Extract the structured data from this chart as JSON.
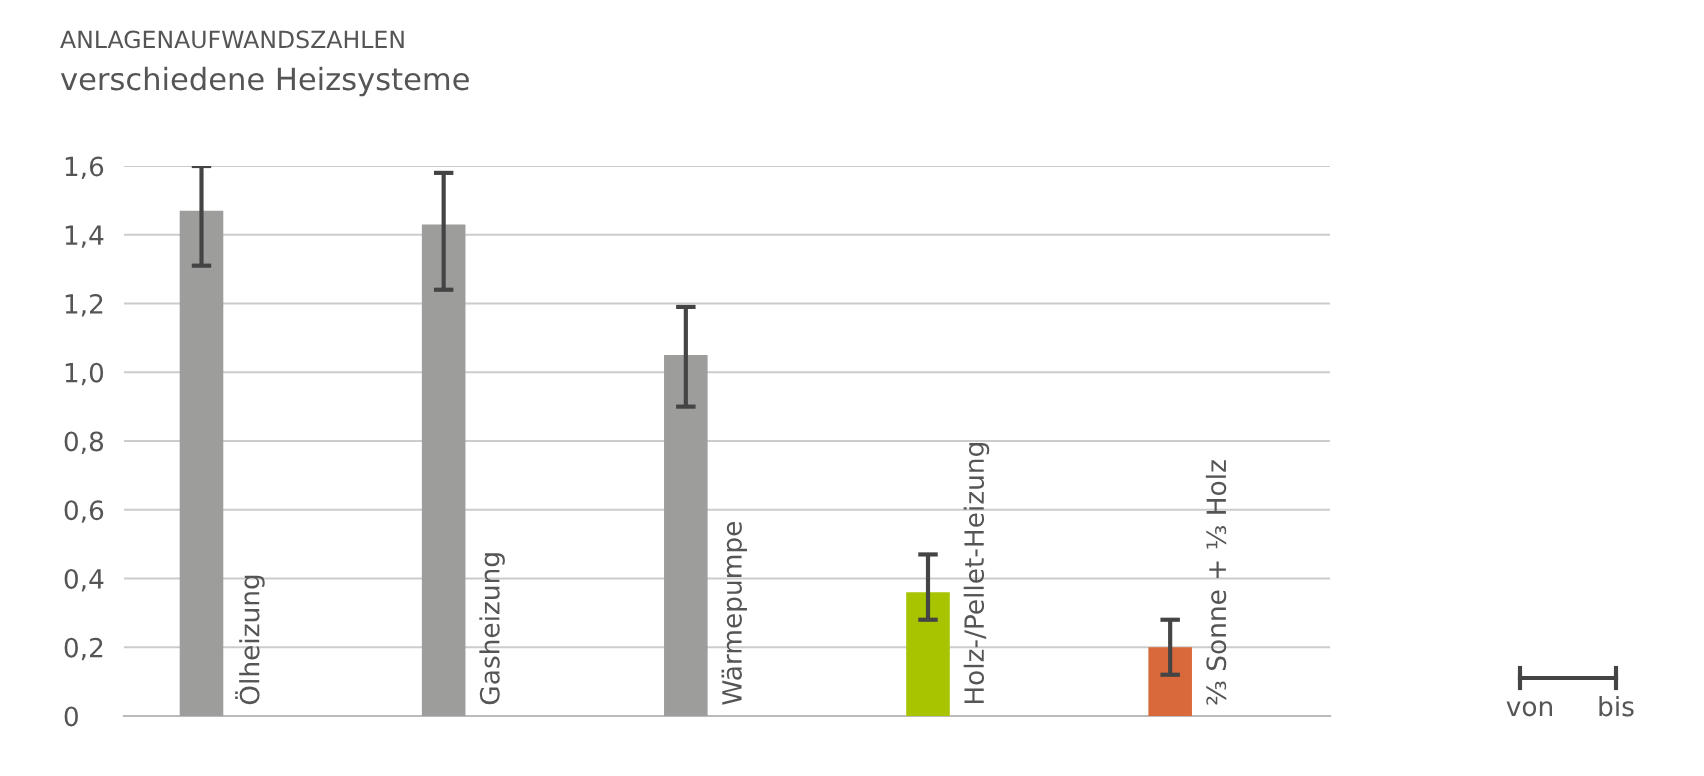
{
  "chart_data": {
    "type": "bar",
    "title": "ANLAGENAUFWANDSZAHLEN",
    "subtitle": "verschiedene Heizsysteme",
    "categories": [
      "Ölheizung",
      "Gasheizung",
      "Wärmepumpe",
      "Holz-/Pellet-Heizung",
      "⅔ Sonne + ⅓ Holz"
    ],
    "values": [
      1.47,
      1.43,
      1.05,
      0.36,
      0.2
    ],
    "colors": [
      "#9d9d9c",
      "#9d9d9c",
      "#9d9d9c",
      "#a8c300",
      "#d9693a"
    ],
    "errors": [
      [
        1.31,
        1.6
      ],
      [
        1.24,
        1.58
      ],
      [
        0.9,
        1.19
      ],
      [
        0.28,
        0.47
      ],
      [
        0.12,
        0.28
      ]
    ],
    "ylim": [
      0,
      1.6
    ],
    "yticks": [
      0,
      {
        "value": 0.2,
        "label": "0,2"
      },
      {
        "value": 0.4,
        "label": "0,4"
      },
      {
        "value": 0.6,
        "label": "0,6"
      },
      {
        "value": 0.8,
        "label": "0,8"
      },
      {
        "value": 1.0,
        "label": "1,0"
      },
      {
        "value": 1.2,
        "label": "1,2"
      },
      {
        "value": 1.4,
        "label": "1,4"
      },
      {
        "value": 1.6,
        "label": "1,6"
      }
    ],
    "grid": "y",
    "annotations": [
      "von",
      "bis"
    ]
  }
}
